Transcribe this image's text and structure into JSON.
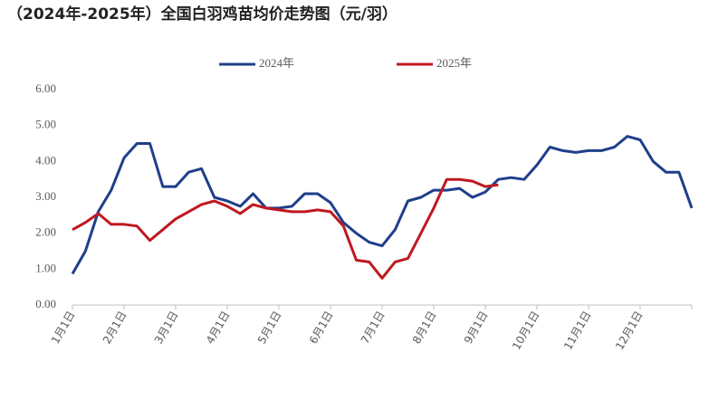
{
  "chart_data": {
    "type": "line",
    "title": "（2024年-2025年）全国白羽鸡苗均价走势图（元/羽）",
    "categories": [
      "1月1日",
      null,
      null,
      null,
      "2月1日",
      null,
      null,
      null,
      "3月1日",
      null,
      null,
      null,
      "4月1日",
      null,
      null,
      null,
      "5月1日",
      null,
      null,
      null,
      "6月1日",
      null,
      null,
      null,
      "7月1日",
      null,
      null,
      null,
      "8月1日",
      null,
      null,
      null,
      "9月1日",
      null,
      null,
      null,
      "10月1日",
      null,
      null,
      null,
      "11月1日",
      null,
      null,
      null,
      "12月1日",
      null,
      null,
      null,
      null
    ],
    "series": [
      {
        "name": "2024年",
        "color": "#1f3f8a",
        "values": [
          0.87,
          1.5,
          2.6,
          3.2,
          4.1,
          4.5,
          4.5,
          3.3,
          3.3,
          3.7,
          3.8,
          3.0,
          2.9,
          2.75,
          3.1,
          2.7,
          2.7,
          2.75,
          3.1,
          3.1,
          2.85,
          2.3,
          2.0,
          1.75,
          1.65,
          2.1,
          2.9,
          3.0,
          3.2,
          3.2,
          3.25,
          3.0,
          3.15,
          3.5,
          3.55,
          3.5,
          3.9,
          4.4,
          4.3,
          4.25,
          4.3,
          4.3,
          4.4,
          4.7,
          4.6,
          4.0,
          3.7,
          3.7,
          2.7
        ]
      },
      {
        "name": "2025年",
        "color": "#c0181f",
        "values": [
          2.1,
          2.3,
          2.55,
          2.25,
          2.25,
          2.2,
          1.8,
          2.1,
          2.4,
          2.6,
          2.8,
          2.9,
          2.75,
          2.55,
          2.8,
          2.7,
          2.65,
          2.6,
          2.6,
          2.65,
          2.6,
          2.2,
          1.25,
          1.2,
          0.75,
          1.2,
          1.3,
          2.0,
          2.7,
          3.5,
          3.5,
          3.45,
          3.3,
          3.35,
          null,
          null,
          null,
          null,
          null,
          null,
          null,
          null,
          null,
          null,
          null,
          null,
          null,
          null,
          null
        ]
      }
    ],
    "ylim": [
      0,
      6
    ],
    "yticks": [
      {
        "value": 0,
        "label": "0.00"
      },
      {
        "value": 1,
        "label": "1.00"
      },
      {
        "value": 2,
        "label": "2.00"
      },
      {
        "value": 3,
        "label": "3.00"
      },
      {
        "value": 4,
        "label": "4.00"
      },
      {
        "value": 5,
        "label": "5.00"
      },
      {
        "value": 6,
        "label": "6.00"
      }
    ],
    "grid": false,
    "legend": "top"
  }
}
